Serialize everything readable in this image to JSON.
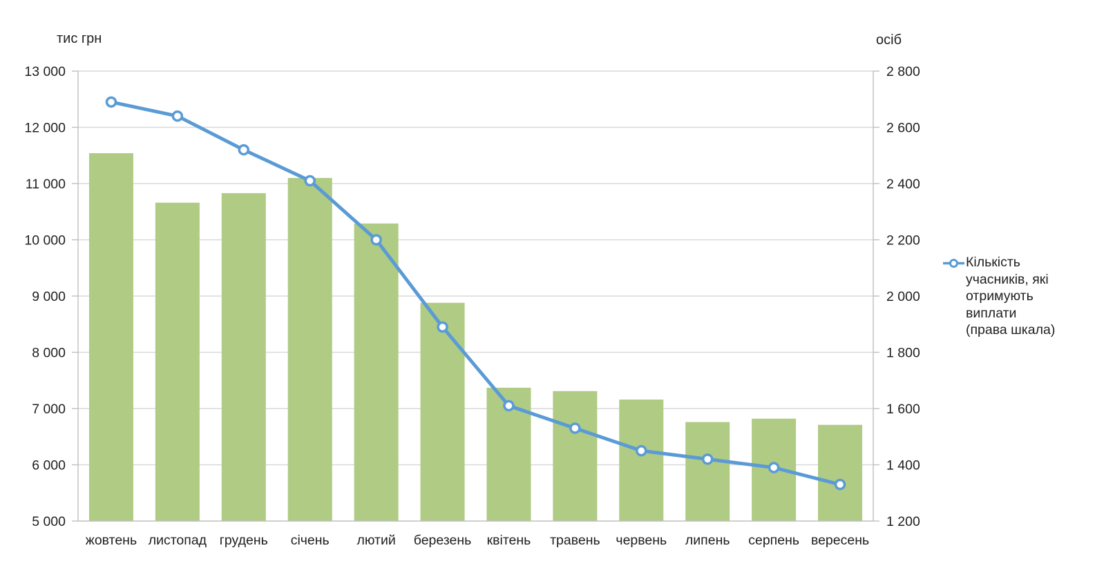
{
  "colors": {
    "bar": "#afcb84",
    "line": "#5b9bd5",
    "marker_fill": "#ffffff",
    "grid": "#d9d9d9",
    "axis": "#bfbfbf",
    "text": "#1f1f1f"
  },
  "legend": {
    "label": "Кількість\nучасників, які\nотримують\nвиплати\n(права шкала)"
  },
  "chart_data": {
    "type": "combo_bar_line",
    "categories": [
      "жовтень",
      "листопад",
      "грудень",
      "січень",
      "лютий",
      "березень",
      "квітень",
      "травень",
      "червень",
      "липень",
      "серпень",
      "вересень"
    ],
    "series": [
      {
        "type": "bar",
        "axis": "left",
        "values": [
          11540,
          10660,
          10830,
          11100,
          10290,
          8880,
          7370,
          7310,
          7160,
          6760,
          6820,
          6710
        ]
      },
      {
        "type": "line",
        "axis": "right",
        "name": "Кількість учасників, які отримують виплати (права шкала)",
        "values": [
          2690,
          2640,
          2520,
          2410,
          2200,
          1890,
          1610,
          1530,
          1450,
          1420,
          1390,
          1330
        ]
      }
    ],
    "left_axis": {
      "title": "тис грн",
      "min": 5000,
      "max": 13000,
      "step": 1000,
      "tick_labels": [
        "13 000",
        "12 000",
        "11 000",
        "10 000",
        "9 000",
        "8 000",
        "7 000",
        "6 000",
        "5 000"
      ]
    },
    "right_axis": {
      "title": "осіб",
      "min": 1200,
      "max": 2800,
      "step": 200,
      "tick_labels": [
        "2 800",
        "2 600",
        "2 400",
        "2 200",
        "2 000",
        "1 800",
        "1 600",
        "1 400",
        "1 200"
      ]
    },
    "grid": true,
    "legend_position": "right"
  }
}
